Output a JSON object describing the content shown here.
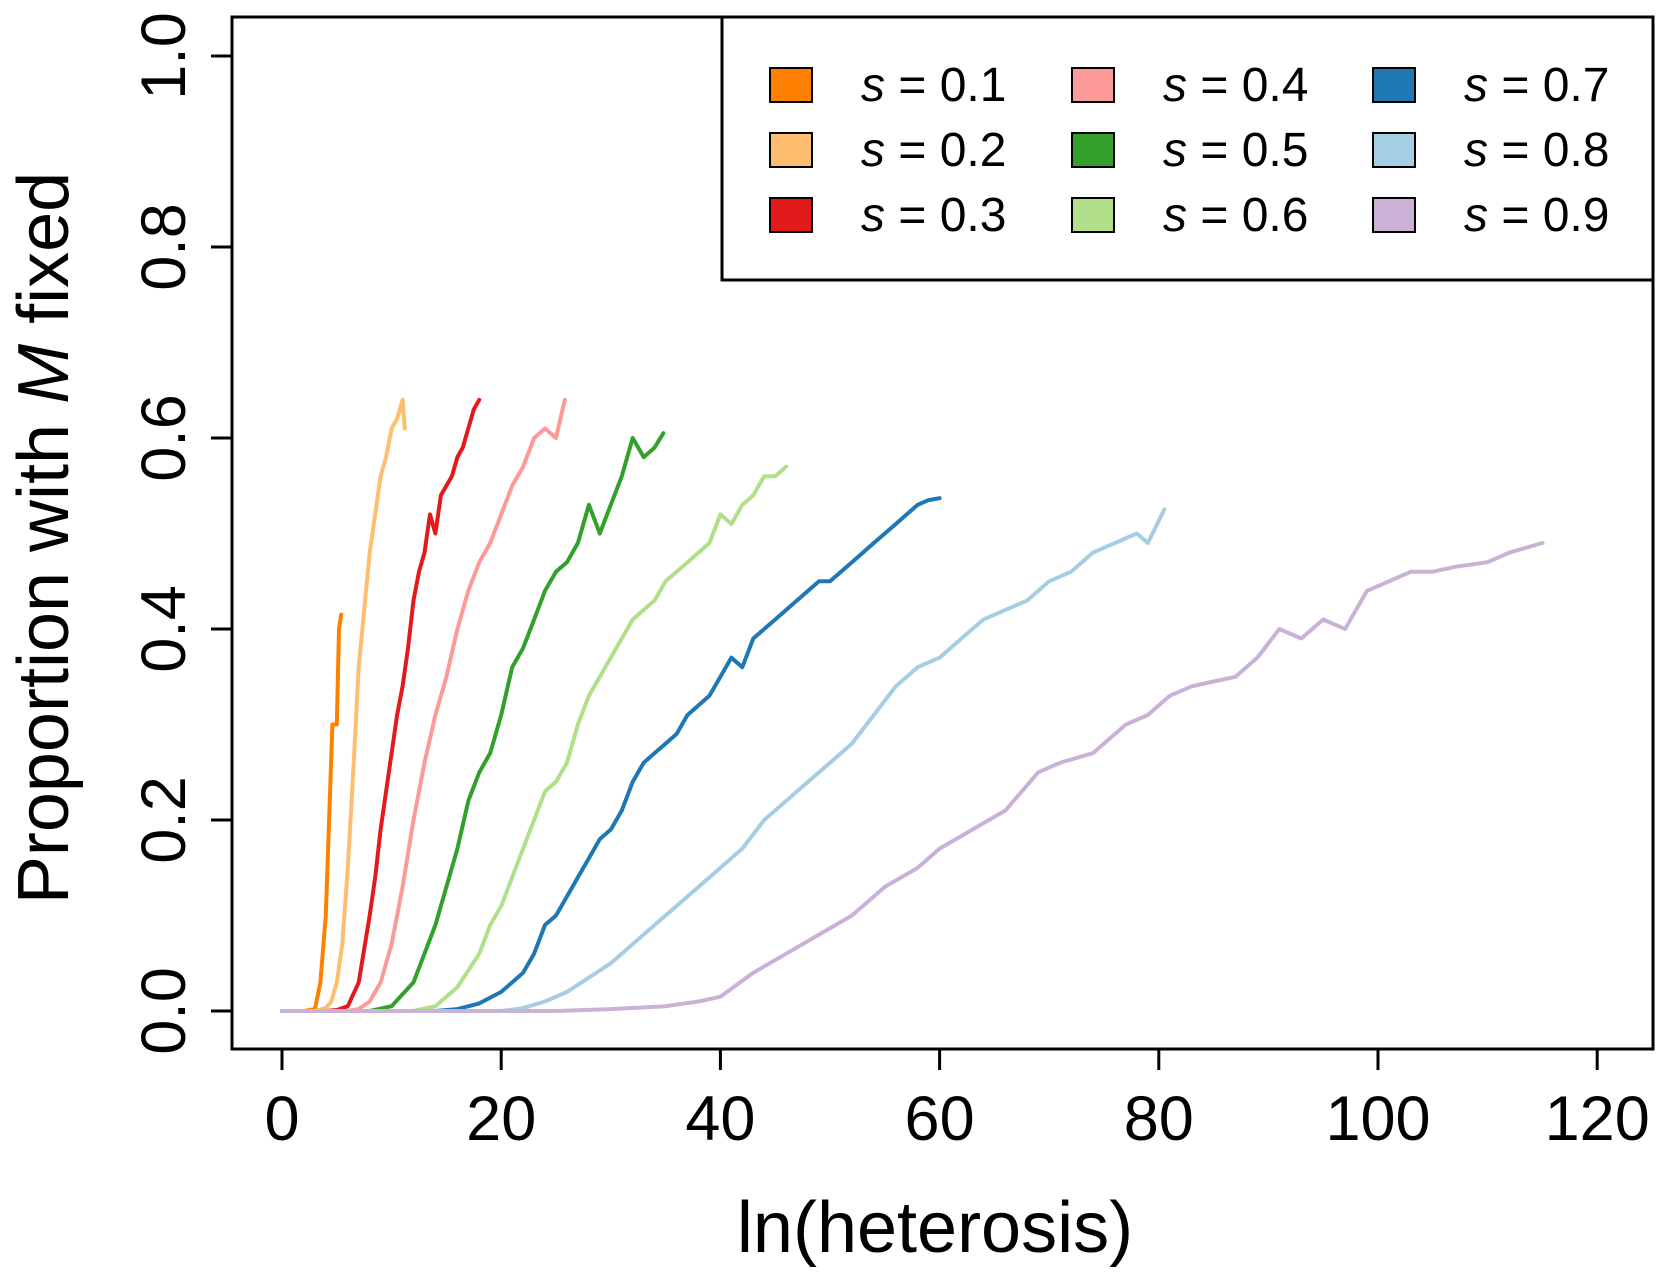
{
  "chart_data": {
    "type": "line",
    "xlabel": "ln(heterosis)",
    "ylabel_parts": [
      "Proportion with ",
      "M",
      " fixed"
    ],
    "xlim": [
      0,
      120
    ],
    "ylim": [
      0,
      1.0
    ],
    "xticks": [
      "0",
      "20",
      "40",
      "60",
      "80",
      "100",
      "120"
    ],
    "yticks": [
      "0.0",
      "0.2",
      "0.4",
      "0.6",
      "0.8",
      "1.0"
    ],
    "grid": false,
    "legend_position": "top-right",
    "legend_prefix": "s",
    "series": [
      {
        "name": "= 0.1",
        "color": "#FF7F00",
        "x": [
          0,
          1,
          2,
          3,
          3.5,
          4,
          4.3,
          4.6,
          5,
          5.2,
          5.4
        ],
        "y": [
          0,
          0,
          0,
          0.002,
          0.03,
          0.1,
          0.2,
          0.3,
          0.3,
          0.4,
          0.415
        ]
      },
      {
        "name": "= 0.2",
        "color": "#FDBF6F",
        "x": [
          0,
          2,
          3,
          4,
          4.5,
          5,
          5.5,
          6,
          6.5,
          7,
          7.5,
          8,
          8.5,
          9,
          9.5,
          10,
          10.5,
          11,
          11.2
        ],
        "y": [
          0,
          0,
          0,
          0.003,
          0.01,
          0.03,
          0.07,
          0.15,
          0.25,
          0.36,
          0.42,
          0.48,
          0.52,
          0.56,
          0.58,
          0.61,
          0.62,
          0.64,
          0.61
        ]
      },
      {
        "name": "= 0.3",
        "color": "#E31A1C",
        "x": [
          0,
          3,
          4,
          5,
          6,
          7,
          8,
          8.5,
          9,
          9.5,
          10,
          10.5,
          11,
          11.5,
          12,
          12.5,
          13,
          13.5,
          14,
          14.5,
          15,
          15.5,
          16,
          16.5,
          17,
          17.5,
          18
        ],
        "y": [
          0,
          0,
          0,
          0.001,
          0.005,
          0.03,
          0.1,
          0.14,
          0.19,
          0.23,
          0.27,
          0.31,
          0.34,
          0.38,
          0.43,
          0.46,
          0.48,
          0.52,
          0.5,
          0.54,
          0.55,
          0.56,
          0.58,
          0.59,
          0.61,
          0.63,
          0.64
        ]
      },
      {
        "name": "= 0.4",
        "color": "#FB9A99",
        "x": [
          0,
          6,
          7,
          8,
          9,
          10,
          11,
          12,
          13,
          14,
          15,
          16,
          17,
          18,
          19,
          20,
          21,
          22,
          23,
          24,
          25,
          25.8
        ],
        "y": [
          0,
          0,
          0.002,
          0.01,
          0.03,
          0.07,
          0.13,
          0.2,
          0.26,
          0.31,
          0.35,
          0.4,
          0.44,
          0.47,
          0.49,
          0.52,
          0.55,
          0.57,
          0.6,
          0.61,
          0.6,
          0.64
        ]
      },
      {
        "name": "= 0.5",
        "color": "#33A02C",
        "x": [
          0,
          8,
          10,
          12,
          14,
          15,
          16,
          17,
          18,
          19,
          20,
          21,
          22,
          23,
          24,
          25,
          26,
          27,
          28,
          29,
          30,
          31,
          32,
          33,
          34,
          34.8
        ],
        "y": [
          0,
          0,
          0.005,
          0.03,
          0.09,
          0.13,
          0.17,
          0.22,
          0.25,
          0.27,
          0.31,
          0.36,
          0.38,
          0.41,
          0.44,
          0.46,
          0.47,
          0.49,
          0.53,
          0.5,
          0.53,
          0.56,
          0.6,
          0.58,
          0.59,
          0.605
        ]
      },
      {
        "name": "= 0.6",
        "color": "#B2DF8A",
        "x": [
          0,
          12,
          14,
          16,
          18,
          19,
          20,
          21,
          22,
          23,
          24,
          25,
          26,
          27,
          28,
          29,
          30,
          31,
          32,
          33,
          34,
          35,
          36,
          37,
          38,
          39,
          40,
          41,
          42,
          43,
          44,
          45,
          46
        ],
        "y": [
          0,
          0,
          0.005,
          0.025,
          0.06,
          0.09,
          0.11,
          0.14,
          0.17,
          0.2,
          0.23,
          0.24,
          0.26,
          0.3,
          0.33,
          0.35,
          0.37,
          0.39,
          0.41,
          0.42,
          0.43,
          0.45,
          0.46,
          0.47,
          0.48,
          0.49,
          0.52,
          0.51,
          0.53,
          0.54,
          0.56,
          0.56,
          0.57
        ]
      },
      {
        "name": "= 0.7",
        "color": "#1F78B4",
        "x": [
          0,
          14,
          16,
          18,
          20,
          22,
          23,
          24,
          25,
          26,
          27,
          28,
          29,
          30,
          31,
          32,
          33,
          34,
          35,
          36,
          37,
          38,
          39,
          40,
          41,
          42,
          43,
          44,
          45,
          46,
          47,
          48,
          49,
          50,
          51,
          52,
          53,
          54,
          55,
          56,
          57,
          58,
          59,
          60
        ],
        "y": [
          0,
          0,
          0.002,
          0.008,
          0.02,
          0.04,
          0.06,
          0.09,
          0.1,
          0.12,
          0.14,
          0.16,
          0.18,
          0.19,
          0.21,
          0.24,
          0.26,
          0.27,
          0.28,
          0.29,
          0.31,
          0.32,
          0.33,
          0.35,
          0.37,
          0.36,
          0.39,
          0.4,
          0.41,
          0.42,
          0.43,
          0.44,
          0.45,
          0.45,
          0.46,
          0.47,
          0.48,
          0.49,
          0.5,
          0.51,
          0.52,
          0.53,
          0.535,
          0.537
        ]
      },
      {
        "name": "= 0.8",
        "color": "#A6CEE3",
        "x": [
          0,
          20,
          22,
          24,
          26,
          28,
          30,
          32,
          34,
          36,
          38,
          40,
          42,
          44,
          46,
          48,
          50,
          52,
          54,
          56,
          58,
          60,
          62,
          64,
          66,
          68,
          70,
          72,
          74,
          76,
          78,
          79,
          80.5
        ],
        "y": [
          0,
          0,
          0.003,
          0.01,
          0.02,
          0.035,
          0.05,
          0.07,
          0.09,
          0.11,
          0.13,
          0.15,
          0.17,
          0.2,
          0.22,
          0.24,
          0.26,
          0.28,
          0.31,
          0.34,
          0.36,
          0.37,
          0.39,
          0.41,
          0.42,
          0.43,
          0.45,
          0.46,
          0.48,
          0.49,
          0.5,
          0.49,
          0.525
        ]
      },
      {
        "name": "= 0.9",
        "color": "#CAB2D6",
        "x": [
          0,
          25,
          30,
          35,
          38,
          40,
          43,
          46,
          49,
          52,
          55,
          58,
          60,
          63,
          66,
          69,
          71,
          74,
          77,
          79,
          81,
          83,
          85,
          87,
          89,
          91,
          93,
          95,
          97,
          99,
          101,
          103,
          105,
          107,
          110,
          112,
          115
        ],
        "y": [
          0,
          0,
          0.002,
          0.005,
          0.01,
          0.015,
          0.04,
          0.06,
          0.08,
          0.1,
          0.13,
          0.15,
          0.17,
          0.19,
          0.21,
          0.25,
          0.26,
          0.27,
          0.3,
          0.31,
          0.33,
          0.34,
          0.345,
          0.35,
          0.37,
          0.4,
          0.39,
          0.41,
          0.4,
          0.44,
          0.45,
          0.46,
          0.46,
          0.465,
          0.47,
          0.48,
          0.49
        ]
      }
    ]
  }
}
